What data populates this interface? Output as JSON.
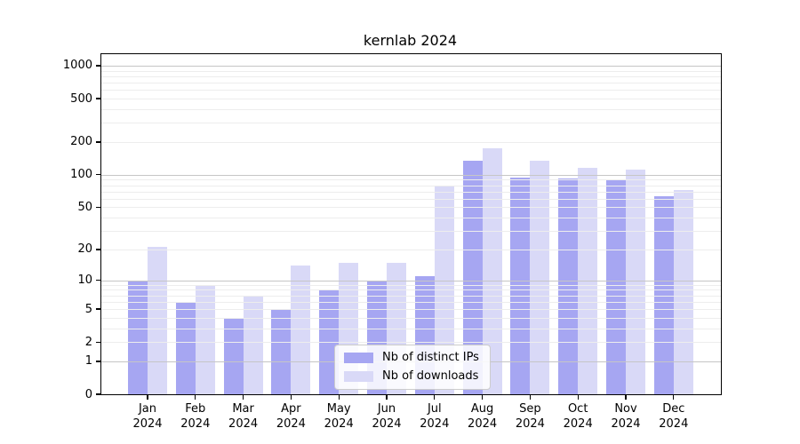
{
  "title": "kernlab 2024",
  "legend": {
    "items": [
      {
        "label": "Nb of distinct IPs"
      },
      {
        "label": "Nb of downloads"
      }
    ]
  },
  "colors": {
    "ips_bar": "#a6a6f2",
    "downloads_bar": "#d9d9f7",
    "major_grid": "#c6c6c6",
    "minor_grid": "#ededed",
    "axis": "#000000",
    "legend_border": "#cccccc"
  },
  "chart_data": {
    "type": "bar",
    "title": "kernlab 2024",
    "categories": [
      "Jan 2024",
      "Feb 2024",
      "Mar 2024",
      "Apr 2024",
      "May 2024",
      "Jun 2024",
      "Jul 2024",
      "Aug 2024",
      "Sep 2024",
      "Oct 2024",
      "Nov 2024",
      "Dec 2024"
    ],
    "series": [
      {
        "name": "Nb of distinct IPs",
        "color": "#a6a6f2",
        "values": [
          10,
          6,
          4,
          5,
          8,
          10,
          11,
          135,
          95,
          92,
          90,
          63
        ]
      },
      {
        "name": "Nb of downloads",
        "color": "#d9d9f7",
        "values": [
          21,
          9,
          7,
          14,
          15,
          15,
          80,
          175,
          135,
          115,
          112,
          72
        ]
      }
    ],
    "xlabel": "",
    "ylabel": "",
    "y_scale": "log1p",
    "y_ticks": [
      0,
      1,
      2,
      5,
      10,
      20,
      50,
      100,
      200,
      500,
      1000
    ],
    "y_axis_max": 1275,
    "major_gridlines": [
      1,
      10,
      100,
      1000
    ],
    "minor_gridlines": [
      2,
      3,
      4,
      6,
      7,
      8,
      9,
      20,
      30,
      40,
      60,
      70,
      80,
      90,
      200,
      300,
      400,
      600,
      700,
      800,
      900,
      5,
      50,
      500
    ],
    "grid": true,
    "grid_above_bars": true,
    "legend_position": "lower center"
  }
}
